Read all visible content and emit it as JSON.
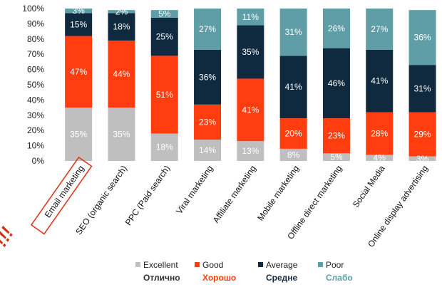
{
  "chart_data": {
    "type": "bar",
    "stacked": true,
    "title": "",
    "xlabel": "",
    "ylabel": "",
    "ylim": [
      0,
      100
    ],
    "yticks": [
      "0%",
      "10%",
      "20%",
      "30%",
      "40%",
      "50%",
      "60%",
      "70%",
      "80%",
      "90%",
      "100%"
    ],
    "grid": false,
    "legend_position": "bottom",
    "highlighted_category": "Email marketing",
    "categories": [
      "Email marketing",
      "SEO (organic search)",
      "PPC (Paid search)",
      "Viral marketing",
      "Affiliate marketing",
      "Mobile marketing",
      "Offline direct marketing",
      "Social Media",
      "Online display advertising"
    ],
    "series": [
      {
        "name": "Excellent",
        "name_ru": "Отлично",
        "color": "#bfbfbf",
        "label_color": "#ffffff",
        "values": [
          35,
          35,
          18,
          14,
          13,
          8,
          5,
          4,
          3
        ],
        "labels": [
          "35%",
          "35%",
          "18%",
          "14%",
          "13%",
          "8%",
          "5%",
          "4%",
          "3%"
        ]
      },
      {
        "name": "Good",
        "name_ru": "Хорошо",
        "color": "#ff3d0f",
        "label_color": "#ff3d0f",
        "values": [
          47,
          44,
          51,
          23,
          41,
          20,
          23,
          28,
          29
        ],
        "labels": [
          "47%",
          "44%",
          "51%",
          "23%",
          "41%",
          "20%",
          "23%",
          "28%",
          "29%"
        ]
      },
      {
        "name": "Average",
        "name_ru": "Средне",
        "color": "#0f2a3f",
        "label_color": "#0f2a3f",
        "values": [
          15,
          18,
          25,
          36,
          35,
          41,
          46,
          41,
          31
        ],
        "labels": [
          "15%",
          "18%",
          "25%",
          "36%",
          "35%",
          "41%",
          "46%",
          "41%",
          "31%"
        ]
      },
      {
        "name": "Poor",
        "name_ru": "Слабо",
        "color": "#5f9ea6",
        "label_color": "#5f9ea6",
        "values": [
          3,
          2,
          5,
          27,
          11,
          31,
          26,
          27,
          36
        ],
        "labels": [
          "3%",
          "2%",
          "5%",
          "27%",
          "11%",
          "31%",
          "26%",
          "27%",
          "36%"
        ]
      }
    ]
  },
  "decoration": {
    "alert_mark": "!!!",
    "highlight_color": "#e03a1e"
  }
}
